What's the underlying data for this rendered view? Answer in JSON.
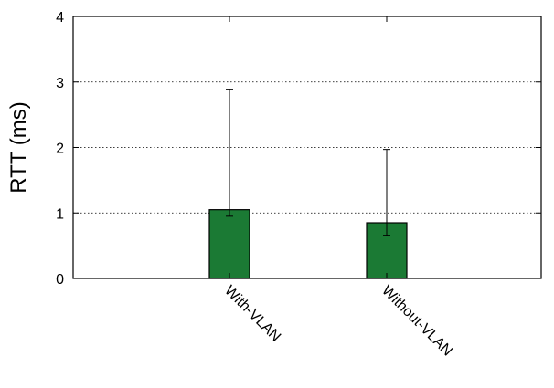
{
  "chart_data": {
    "type": "bar",
    "categories": [
      "With-VLAN",
      "Without-VLAN"
    ],
    "values": [
      1.05,
      0.85
    ],
    "error_bars": [
      {
        "low": 0.95,
        "high": 2.88
      },
      {
        "low": 0.66,
        "high": 1.97
      }
    ],
    "ylabel": "RTT (ms)",
    "xlabel": "",
    "ylim": [
      0,
      4
    ],
    "yticks": [
      0,
      1,
      2,
      3,
      4
    ],
    "grid": "horizontal dotted at 1, 2, 3",
    "bar_color": "#1b7a34",
    "bar_edge_color": "#000000"
  }
}
